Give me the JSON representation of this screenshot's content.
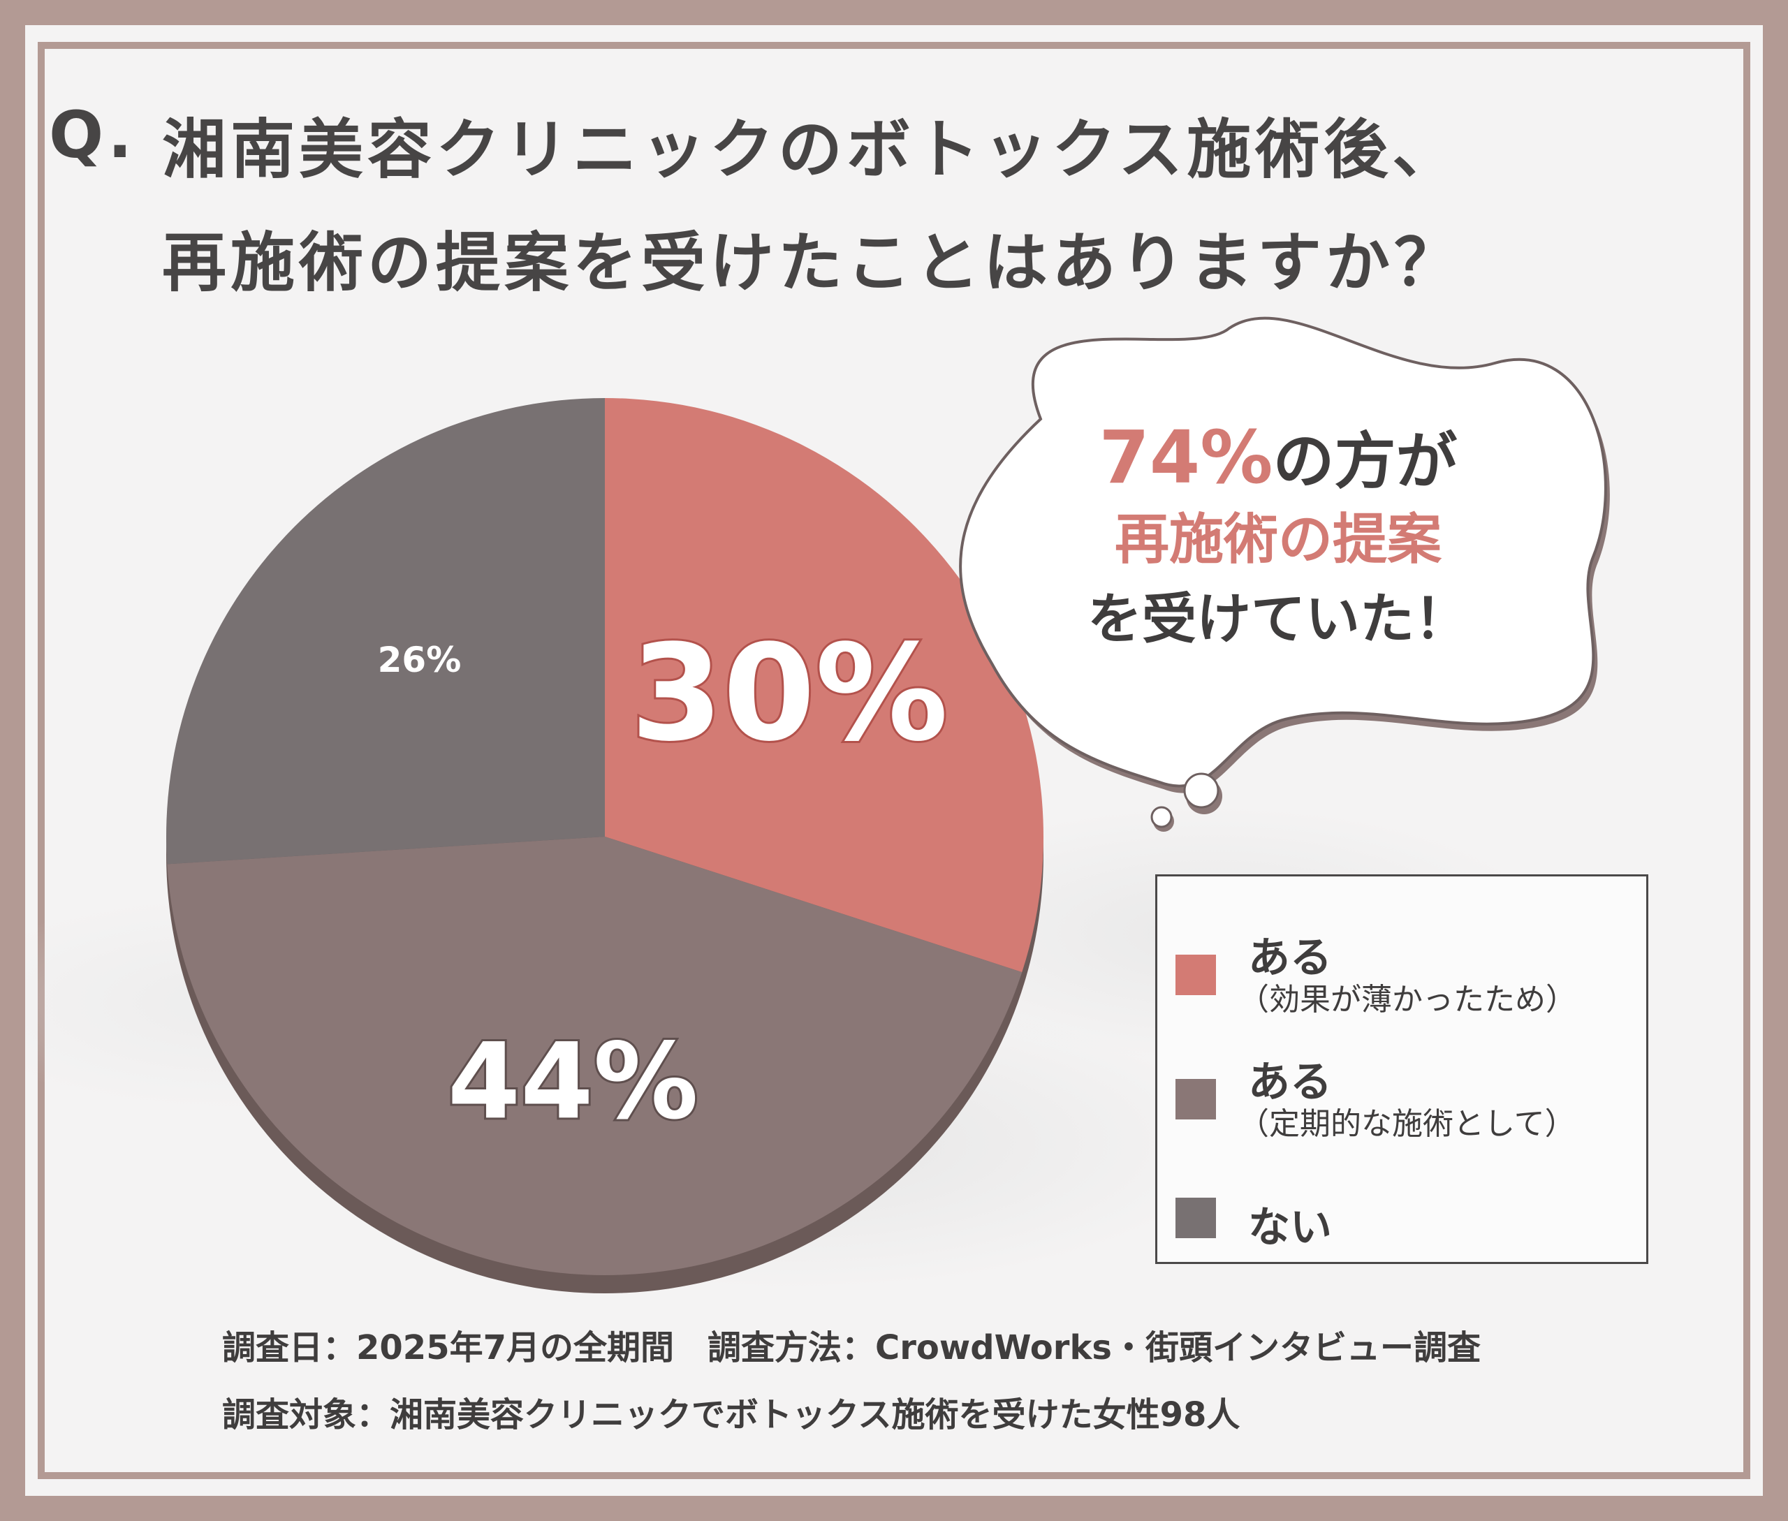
{
  "title": {
    "q_mark": "Q.",
    "line1": "湘南美容クリニックのボトックス施術後、",
    "line2": "再施術の提案を受けたことはありますか？"
  },
  "bubble": {
    "percent": "74%",
    "line1_rest": "の方が",
    "line2": "再施術の提案",
    "line3": "を受けていた！"
  },
  "legend": {
    "items": [
      {
        "label": "ある",
        "sub": "（効果が薄かったため）",
        "color": "#d37b74"
      },
      {
        "label": "ある",
        "sub": "（定期的な施術として）",
        "color": "#8a7776"
      },
      {
        "label": "ない",
        "sub": "",
        "color": "#787172"
      }
    ]
  },
  "chart_data": {
    "type": "pie",
    "slices": [
      {
        "label": "ある（効果が薄かったため）",
        "value": 30,
        "display": "30%",
        "color": "#d37b74"
      },
      {
        "label": "ある（定期的な施術として）",
        "value": 44,
        "display": "44%",
        "color": "#8a7776"
      },
      {
        "label": "ない",
        "value": 26,
        "display": "26%",
        "color": "#787172"
      }
    ],
    "start": "12 o'clock",
    "direction": "clockwise"
  },
  "footer": {
    "line1": "調査日：2025年7月の全期間　調査方法：CrowdWorks・街頭インタビュー調査",
    "line2": "調査対象：湘南美容クリニックでボトックス施術を受けた女性98人"
  },
  "colors": {
    "frame": "#b39a94",
    "text": "#474545",
    "accent": "#d37b74"
  }
}
